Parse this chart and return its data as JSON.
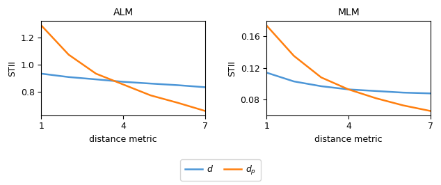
{
  "alm_title": "ALM",
  "mlm_title": "MLM",
  "xlabel": "distance metric",
  "ylabel": "STII",
  "x": [
    1,
    2,
    3,
    4,
    5,
    6,
    7
  ],
  "alm_d": [
    0.935,
    0.91,
    0.893,
    0.875,
    0.862,
    0.85,
    0.835
  ],
  "alm_dp": [
    1.29,
    1.075,
    0.935,
    0.855,
    0.775,
    0.72,
    0.66
  ],
  "mlm_d": [
    0.114,
    0.103,
    0.097,
    0.093,
    0.091,
    0.089,
    0.088
  ],
  "mlm_dp": [
    0.173,
    0.135,
    0.108,
    0.093,
    0.082,
    0.073,
    0.066
  ],
  "color_d": "#4C96D7",
  "color_dp": "#FF7F0E",
  "legend_d": "$d$",
  "legend_dp": "$d_p$",
  "alm_yticks": [
    0.8,
    1.0,
    1.2
  ],
  "mlm_yticks": [
    0.08,
    0.12,
    0.16
  ],
  "xticks": [
    1,
    4,
    7
  ]
}
